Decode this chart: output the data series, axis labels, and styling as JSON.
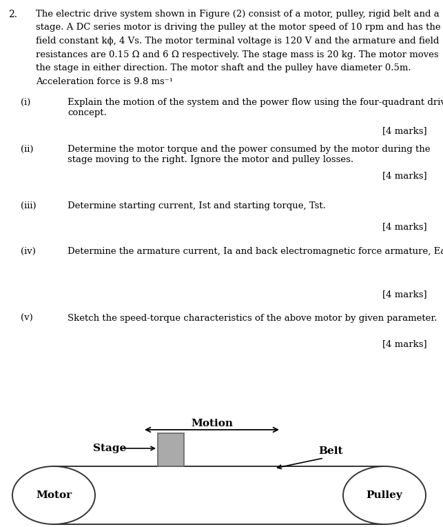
{
  "question_number": "2.",
  "main_text_lines": [
    "The electric drive system shown in Figure (2) consist of a motor, pulley, rigid belt and a",
    "stage. A DC series motor is driving the pulley at the motor speed of 10 rpm and has the",
    "field constant kϕ, 4 Vs. The motor terminal voltage is 120 V and the armature and field",
    "resistances are 0.15 Ω and 6 Ω respectively. The stage mass is 20 kg. The motor moves",
    "the stage in either direction. The motor shaft and the pulley have diameter 0.5m.",
    "Acceleration force is 9.8 ms⁻¹"
  ],
  "sub_questions": [
    {
      "label": "(i)",
      "text_lines": [
        "Explain the motion of the system and the power flow using the four-quadrant drive",
        "concept."
      ],
      "marks": "[4 marks]"
    },
    {
      "label": "(ii)",
      "text_lines": [
        "Determine the motor torque and the power consumed by the motor during the",
        "stage moving to the right. Ignore the motor and pulley losses."
      ],
      "marks": "[4 marks]"
    },
    {
      "label": "(iii)",
      "text_lines": [
        "Determine starting current, Ist and starting torque, Tst."
      ],
      "marks": "[4 marks]"
    },
    {
      "label": "(iv)",
      "text_lines": [
        "Determine the armature current, Ia and back electromagnetic force armature, Ea."
      ],
      "marks": "[4 marks]"
    },
    {
      "label": "(v)",
      "text_lines": [
        "Sketch the speed-torque characteristics of the above motor by given parameter."
      ],
      "marks": "[4 marks]"
    }
  ],
  "diagram": {
    "motion_label": "Motion",
    "stage_label": "Stage",
    "belt_label": "Belt",
    "motor_label": "Motor",
    "pulley_label": "Pulley"
  },
  "bg_color": "#ffffff",
  "text_color": "#000000",
  "gray_color": "#aaaaaa",
  "line_color": "#333333"
}
